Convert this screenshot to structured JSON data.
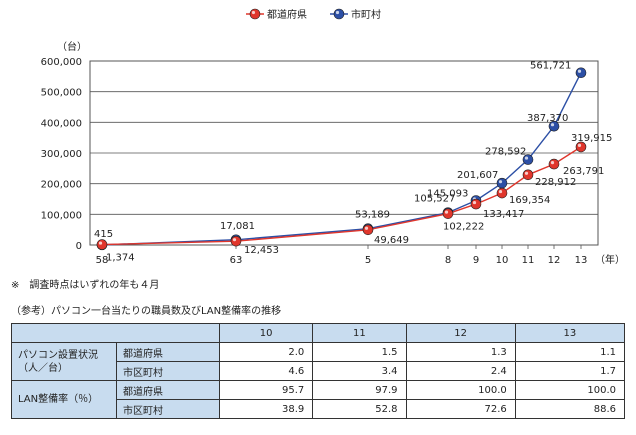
{
  "chart_data": {
    "type": "line",
    "legend": {
      "placement": "top-center"
    },
    "y_unit": "（台）",
    "x_unit": "（年）",
    "ylim": [
      0,
      600000
    ],
    "y_ticks": [
      "600,000",
      "500,000",
      "400,000",
      "300,000",
      "200,000",
      "100,000",
      "0"
    ],
    "y_tick_values": [
      600000,
      500000,
      400000,
      300000,
      200000,
      100000,
      0
    ],
    "categories": [
      "58",
      "63",
      "5",
      "8",
      "9",
      "10",
      "11",
      "12",
      "13"
    ],
    "grid": true,
    "series": [
      {
        "name": "都道府県",
        "color": "#e0362c",
        "values": [
          1374,
          12453,
          49649,
          102222,
          133417,
          169354,
          228912,
          263791,
          319915
        ],
        "labels": [
          "1,374",
          "12,453",
          "49,649",
          "102,222",
          "133,417",
          "169,354",
          "228,912",
          "263,791",
          "319,915"
        ]
      },
      {
        "name": "市町村",
        "color": "#2c4fa5",
        "values": [
          415,
          17081,
          53189,
          105527,
          145093,
          201607,
          278592,
          387370,
          561721
        ],
        "labels": [
          "415",
          "17,081",
          "53,189",
          "105,527",
          "145,093",
          "201,607",
          "278,592",
          "387,370",
          "561,721"
        ]
      }
    ]
  },
  "notes": {
    "survey": "※　調査時点はいずれの年も４月",
    "reference_title": "（参考）パソコン一台当たりの職員数及びLAN整備率の推移"
  },
  "table": {
    "years": [
      "10",
      "11",
      "12",
      "13"
    ],
    "groups": [
      {
        "label": "パソコン設置状況（人／台）",
        "rows": [
          {
            "label": "都道府県",
            "values": [
              "2.0",
              "1.5",
              "1.3",
              "1.1"
            ]
          },
          {
            "label": "市区町村",
            "values": [
              "4.6",
              "3.4",
              "2.4",
              "1.7"
            ]
          }
        ]
      },
      {
        "label": "LAN整備率（％）",
        "rows": [
          {
            "label": "都道府県",
            "values": [
              "95.7",
              "97.9",
              "100.0",
              "100.0"
            ]
          },
          {
            "label": "市区町村",
            "values": [
              "38.9",
              "52.8",
              "72.6",
              "88.6"
            ]
          }
        ]
      }
    ]
  }
}
